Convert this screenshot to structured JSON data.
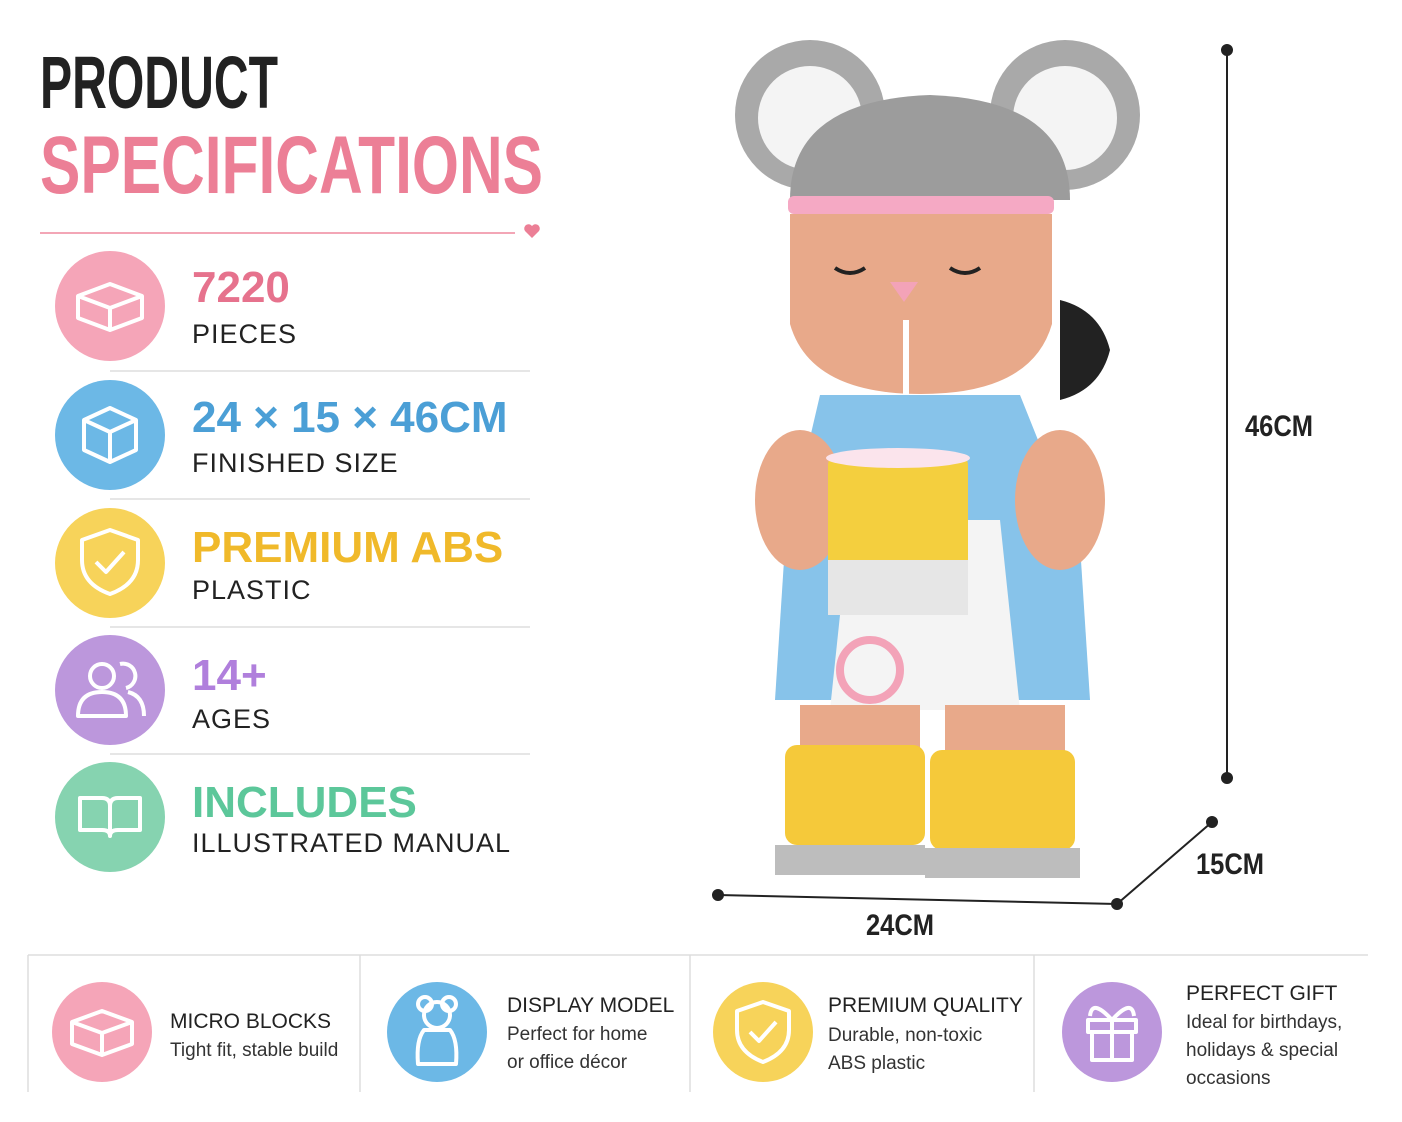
{
  "header": {
    "title_line1": "PRODUCT",
    "title_line2": "SPECIFICATIONS"
  },
  "specs": [
    {
      "value": "7220",
      "label": "PIECES"
    },
    {
      "value": "24 × 15 × 46CM",
      "label": "FINISHED SIZE"
    },
    {
      "value": "PREMIUM ABS",
      "label": "PLASTIC"
    },
    {
      "value": "14+",
      "label": "AGES"
    },
    {
      "value": "INCLUDES",
      "label": "ILLUSTRATED MANUAL"
    }
  ],
  "dimensions": {
    "height": "46CM",
    "depth": "15CM",
    "width": "24CM"
  },
  "features": [
    {
      "title": "MICRO BLOCKS",
      "description": "Tight fit, stable build"
    },
    {
      "title": "DISPLAY MODEL",
      "description": "Perfect for home or office décor"
    },
    {
      "title": "PREMIUM QUALITY",
      "description": "Durable, non-toxic ABS plastic"
    },
    {
      "title": "PERFECT GIFT",
      "description": "Ideal for birthdays, holidays & special occasions"
    }
  ]
}
